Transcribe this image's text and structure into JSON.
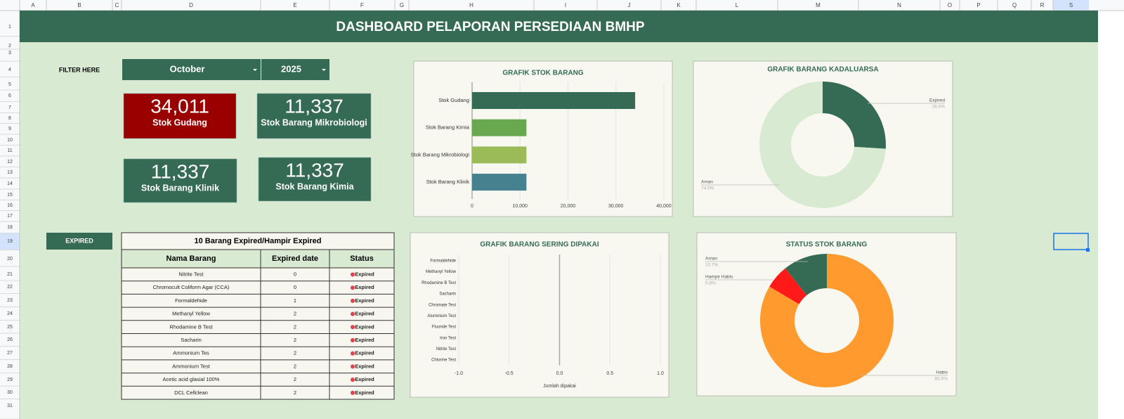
{
  "sheet": {
    "columns": [
      "A",
      "B",
      "C",
      "D",
      "E",
      "F",
      "G",
      "H",
      "I",
      "J",
      "K",
      "L",
      "M",
      "N",
      "O",
      "P",
      "Q",
      "R",
      "S"
    ],
    "rows": [
      1,
      2,
      3,
      4,
      5,
      6,
      7,
      8,
      9,
      10,
      11,
      12,
      13,
      14,
      15,
      16,
      17,
      18,
      19,
      20,
      21,
      22,
      23,
      24,
      25,
      26,
      27,
      28,
      29,
      30,
      31
    ]
  },
  "header": {
    "title": "DASHBOARD PELAPORAN PERSEDIAAN BMHP"
  },
  "filter": {
    "label": "FILTER HERE",
    "month": "October",
    "year": "2025"
  },
  "kpis": [
    {
      "value": "34,011",
      "label": "Stok Gudang"
    },
    {
      "value": "11,337",
      "label": "Stok Barang Mikrobiologi"
    },
    {
      "value": "11,337",
      "label": "Stok Barang Klinik"
    },
    {
      "value": "11,337",
      "label": "Stok Barang Kimia"
    }
  ],
  "expired_button": "EXPIRED",
  "table": {
    "title": "10 Barang Expired/Hampir Expired",
    "headers": [
      "Nama Barang",
      "Expired date",
      "Status"
    ],
    "rows": [
      [
        "Nitrite Test",
        0,
        "Expired"
      ],
      [
        "Chromocult Coliform Agar (CCA)",
        0,
        "Expired"
      ],
      [
        "Formaldehide",
        1,
        "Expired"
      ],
      [
        "Methanyl Yellow",
        2,
        "Expired"
      ],
      [
        "Rhodamine B Test",
        2,
        "Expired"
      ],
      [
        "Sacharin",
        2,
        "Expired"
      ],
      [
        "Ammonium Tes",
        2,
        "Expired"
      ],
      [
        "Ammonium Test",
        2,
        "Expired"
      ],
      [
        "Acetic acid glasial 100%",
        2,
        "Expired"
      ],
      [
        "DCL Cellclean",
        2,
        "Expired"
      ]
    ]
  },
  "chart_data": [
    {
      "type": "bar",
      "orientation": "horizontal",
      "title": "GRAFIK STOK BARANG",
      "categories": [
        "Stok Gudang",
        "Stok Barang Kimia",
        "Stok Barang Mikrobiologi",
        "Stok Barang Klinik"
      ],
      "values": [
        34011,
        11337,
        11337,
        11337
      ],
      "colors": [
        "#356b55",
        "#6aa84f",
        "#9bbb59",
        "#45818e"
      ],
      "xlim": [
        0,
        40000
      ],
      "xticks": [
        0,
        {
          "value": 10000,
          "label": "10,000"
        },
        {
          "value": 20000,
          "label": "20,000"
        },
        {
          "value": 30000,
          "label": "30,000"
        },
        {
          "value": 40000,
          "label": "40,000"
        }
      ],
      "grid": true
    },
    {
      "type": "pie",
      "donut": true,
      "title": "GRAFIK BARANG KADALUARSA",
      "categories": [
        "Expired",
        "Aman"
      ],
      "values": [
        26,
        74
      ],
      "value_labels": [
        "26.0%",
        "74.0%"
      ],
      "colors": [
        "#356b55",
        "#d9ead3"
      ]
    },
    {
      "type": "bar",
      "orientation": "horizontal",
      "title": "GRAFIK BARANG SERING DIPAKAI",
      "categories": [
        "Formaldehide",
        "Methanyl Yellow",
        "Rhodamine B Test",
        "Sacharin",
        "Chromate Test",
        "Aluminium Test",
        "Fluoride Test",
        "Iron Test",
        "Nitrite Test",
        "Chlorine Test"
      ],
      "values": [
        0,
        0,
        0,
        0,
        0,
        0,
        0,
        0,
        0,
        0
      ],
      "xlabel": "Jumlah dipakai",
      "xlim": [
        -1,
        1
      ],
      "xticks": [
        {
          "value": -1,
          "label": "-1.0"
        },
        {
          "value": -0.5,
          "label": "-0.5"
        },
        {
          "value": 0,
          "label": "0.0"
        },
        {
          "value": 0.5,
          "label": "0.5"
        },
        {
          "value": 1,
          "label": "1.0"
        }
      ],
      "grid": true
    },
    {
      "type": "pie",
      "donut": true,
      "title": "STATUS STOK BARANG",
      "categories": [
        "Habis",
        "Hampir Habis",
        "Aman"
      ],
      "values": [
        83.5,
        5.8,
        10.7
      ],
      "value_labels": [
        "83.5%",
        "5.8%",
        "10.7%"
      ],
      "colors": [
        "#ff9a2e",
        "#ff1a1a",
        "#356b55"
      ]
    }
  ]
}
